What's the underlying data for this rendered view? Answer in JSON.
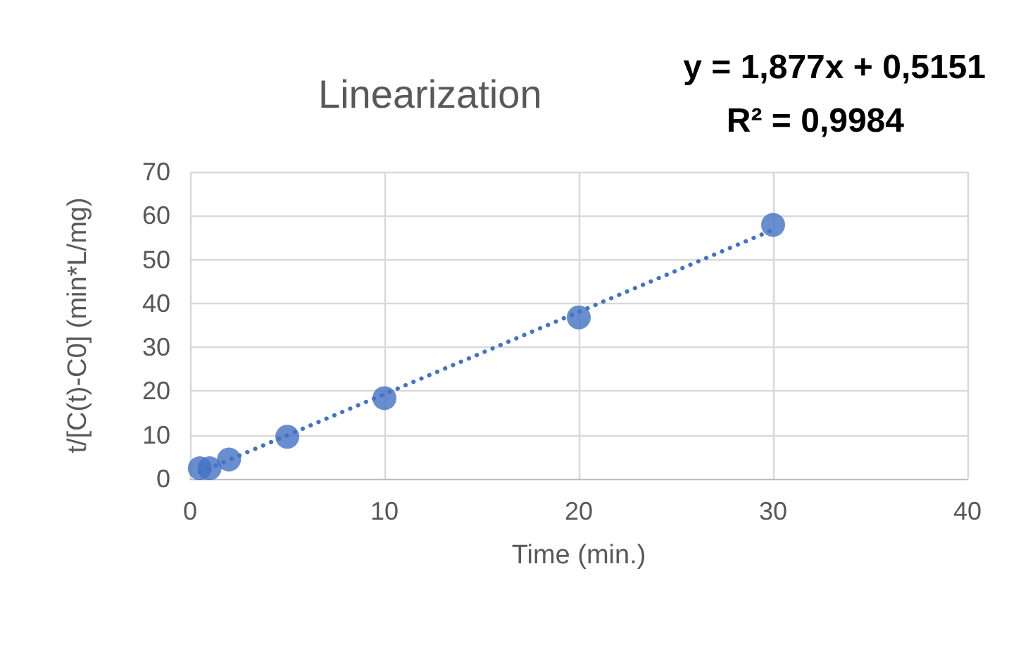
{
  "chart_data": {
    "type": "scatter",
    "title": "Linearization",
    "xlabel": "Time (min.)",
    "ylabel": "t/[C(t)-C0] (min*L/mg)",
    "annotations": [
      "y = 1,877x + 0,5151",
      "R² = 0,9984"
    ],
    "xlim": [
      0,
      40
    ],
    "xticks": [
      0,
      10,
      20,
      30,
      40
    ],
    "ylim": [
      0,
      70
    ],
    "yticks": [
      0,
      10,
      20,
      30,
      40,
      50,
      60,
      70
    ],
    "grid": true,
    "marker": "circle",
    "series": [
      {
        "color": "#4472c4",
        "x": [
          0.5,
          1,
          2,
          5,
          10,
          20,
          30
        ],
        "values": [
          2.4,
          2.4,
          4.4,
          9.6,
          18.4,
          36.8,
          57.9
        ]
      },
      {
        "type": "line",
        "color": "#4472c4",
        "line_style": "dotted",
        "marker": "none",
        "x": [
          0.5,
          30
        ],
        "values": [
          1.5,
          56.8
        ]
      }
    ]
  }
}
